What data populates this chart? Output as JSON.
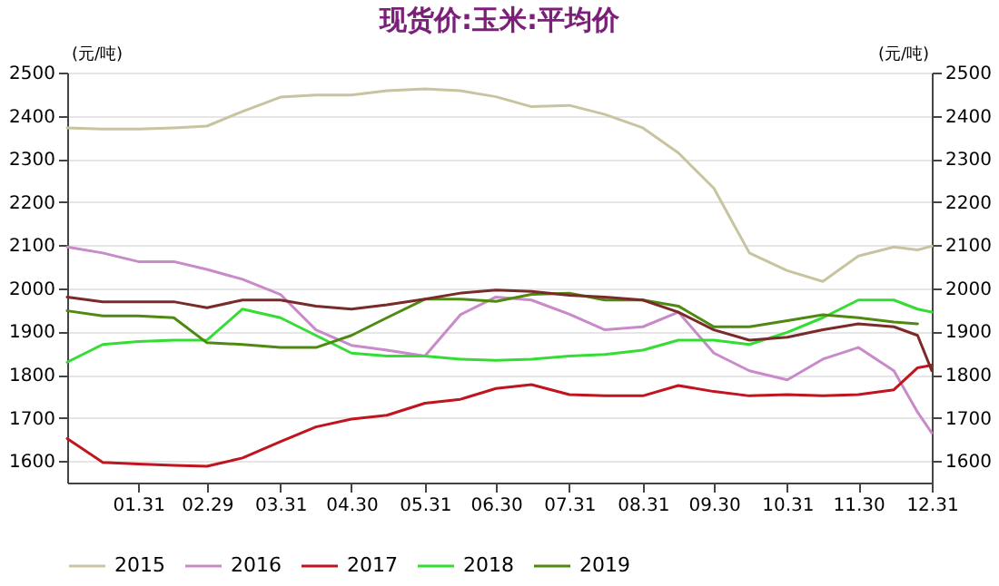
{
  "chart_data": {
    "type": "line",
    "title": "现货价:玉米:平均价",
    "ylabel": "(元/吨)",
    "y2label": "(元/吨)",
    "x": [
      "--01-01",
      "--01-16",
      "--01-31",
      "--02-15",
      "--02-29",
      "--03-15",
      "--03-31",
      "--04-15",
      "--04-30",
      "--05-15",
      "--05-31",
      "--06-15",
      "--06-30",
      "--07-15",
      "--07-31",
      "--08-15",
      "--08-31",
      "--09-15",
      "--09-30",
      "--10-15",
      "--10-31",
      "--11-15",
      "--11-30",
      "--12-15",
      "--12-25",
      "--12-31"
    ],
    "series": [
      {
        "name": "2015",
        "color": "#c8c4a0",
        "values": [
          2372,
          2369,
          2369,
          2372,
          2376,
          2410,
          2443,
          2448,
          2448,
          2458,
          2462,
          2458,
          2444,
          2421,
          2424,
          2403,
          2372,
          2314,
          2232,
          2082,
          2041,
          2016,
          2075,
          2096,
          2089,
          2098
        ]
      },
      {
        "name": "2016",
        "color": "#c88ac8",
        "values": [
          2096,
          2082,
          2062,
          2062,
          2044,
          2021,
          1986,
          1904,
          1868,
          1857,
          1843,
          1939,
          1980,
          1973,
          1940,
          1904,
          1911,
          1945,
          1850,
          1809,
          1788,
          1836,
          1863,
          1809,
          1713,
          1665
        ]
      },
      {
        "name": "2017",
        "color": "#c0141e",
        "values": [
          1652,
          1597,
          1593,
          1590,
          1588,
          1607,
          1645,
          1679,
          1697,
          1706,
          1734,
          1743,
          1768,
          1777,
          1754,
          1751,
          1751,
          1775,
          1761,
          1751,
          1754,
          1751,
          1754,
          1765,
          1816,
          1822
        ]
      },
      {
        "name": "2018",
        "color": "#33dd33",
        "values": [
          1829,
          1870,
          1877,
          1880,
          1880,
          1952,
          1932,
          1891,
          1850,
          1843,
          1843,
          1836,
          1833,
          1836,
          1843,
          1847,
          1857,
          1880,
          1880,
          1870,
          1898,
          1932,
          1973,
          1973,
          1952,
          1945
        ]
      },
      {
        "name": "2019",
        "color": "#4e8a12",
        "values": [
          1948,
          1936,
          1936,
          1932,
          1874,
          1870,
          1863,
          1863,
          1891,
          1932,
          1975,
          1975,
          1970,
          1986,
          1989,
          1973,
          1973,
          1959,
          1911,
          1911,
          1925,
          1939,
          1932,
          1922,
          1918,
          null
        ]
      },
      {
        "color": "#7a2a28",
        "values": [
          1980,
          1969,
          1969,
          1969,
          1955,
          1973,
          1973,
          1959,
          1952,
          1962,
          1975,
          1989,
          1996,
          1993,
          1984,
          1980,
          1973,
          1945,
          1904,
          1880,
          1887,
          1904,
          1918,
          1911,
          1891,
          1809
        ]
      }
    ],
    "xlim": [
      "--01-01",
      "--12-31"
    ],
    "xticks": [
      {
        "value": "--01-31",
        "label": "01.31"
      },
      {
        "value": "--02-29",
        "label": "02.29"
      },
      {
        "value": "--03-31",
        "label": "03.31"
      },
      {
        "value": "--04-30",
        "label": "04.30"
      },
      {
        "value": "--05-31",
        "label": "05.31"
      },
      {
        "value": "--06-30",
        "label": "06.30"
      },
      {
        "value": "--07-31",
        "label": "07.31"
      },
      {
        "value": "--08-31",
        "label": "08.31"
      },
      {
        "value": "--09-30",
        "label": "09.30"
      },
      {
        "value": "--10-31",
        "label": "10.31"
      },
      {
        "value": "--11-30",
        "label": "11.30"
      },
      {
        "value": "--12-31",
        "label": "12.31"
      }
    ],
    "ylim": [
      1550,
      2500
    ],
    "yticks": [
      1600,
      1700,
      1800,
      1900,
      2000,
      2100,
      2200,
      2300,
      2400,
      2500
    ],
    "y2lim": [
      1550,
      2500
    ],
    "y2ticks": [
      1600,
      1700,
      1800,
      1900,
      2000,
      2100,
      2200,
      2300,
      2400,
      2500
    ],
    "grid": "y",
    "legend": "bottom",
    "marker": "none",
    "line_style": "solid"
  }
}
